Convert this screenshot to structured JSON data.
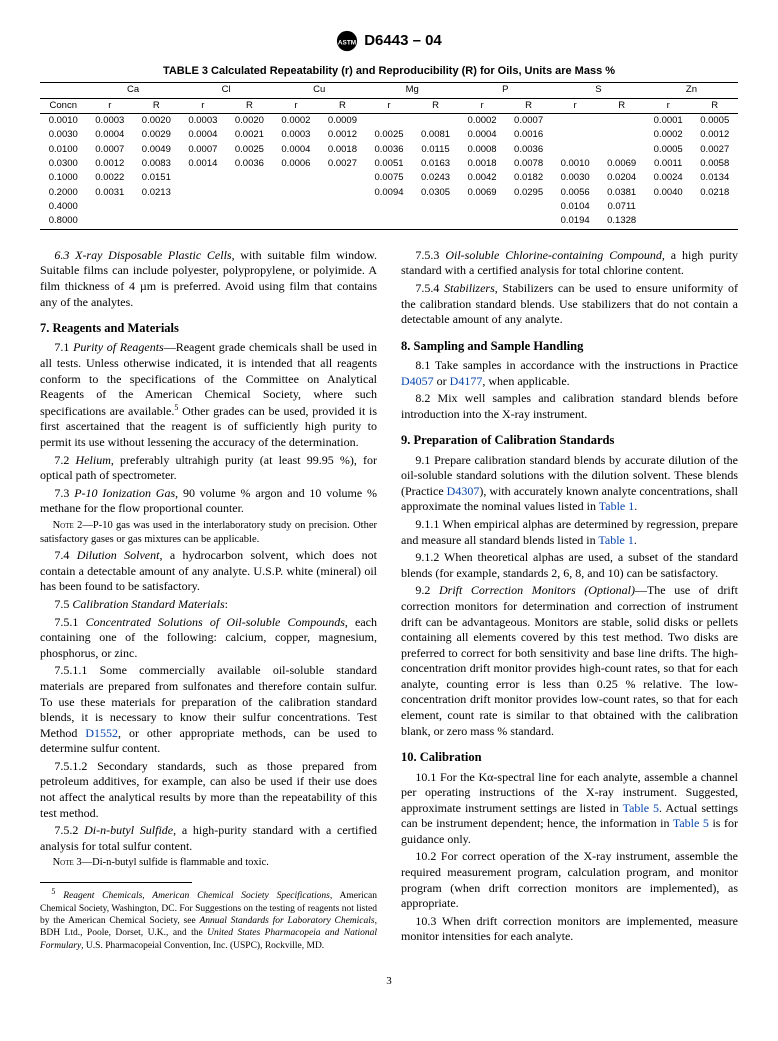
{
  "header": {
    "designation": "D6443 – 04"
  },
  "table3": {
    "caption": "TABLE 3  Calculated Repeatability (r) and Reproducibility (R) for Oils, Units are Mass %",
    "group_headers": [
      "",
      "Ca",
      "Cl",
      "Cu",
      "Mg",
      "P",
      "S",
      "Zn"
    ],
    "sub_headers": [
      "Concn",
      "r",
      "R",
      "r",
      "R",
      "r",
      "R",
      "r",
      "R",
      "r",
      "R",
      "r",
      "R",
      "r",
      "R"
    ],
    "rows": [
      [
        "0.0010",
        "0.0003",
        "0.0020",
        "0.0003",
        "0.0020",
        "0.0002",
        "0.0009",
        "",
        "",
        "0.0002",
        "0.0007",
        "",
        "",
        "0.0001",
        "0.0005"
      ],
      [
        "0.0030",
        "0.0004",
        "0.0029",
        "0.0004",
        "0.0021",
        "0.0003",
        "0.0012",
        "0.0025",
        "0.0081",
        "0.0004",
        "0.0016",
        "",
        "",
        "0.0002",
        "0.0012"
      ],
      [
        "0.0100",
        "0.0007",
        "0.0049",
        "0.0007",
        "0.0025",
        "0.0004",
        "0.0018",
        "0.0036",
        "0.0115",
        "0.0008",
        "0.0036",
        "",
        "",
        "0.0005",
        "0.0027"
      ],
      [
        "0.0300",
        "0.0012",
        "0.0083",
        "0.0014",
        "0.0036",
        "0.0006",
        "0.0027",
        "0.0051",
        "0.0163",
        "0.0018",
        "0.0078",
        "0.0010",
        "0.0069",
        "0.0011",
        "0.0058"
      ],
      [
        "0.1000",
        "0.0022",
        "0.0151",
        "",
        "",
        "",
        "",
        "0.0075",
        "0.0243",
        "0.0042",
        "0.0182",
        "0.0030",
        "0.0204",
        "0.0024",
        "0.0134"
      ],
      [
        "0.2000",
        "0.0031",
        "0.0213",
        "",
        "",
        "",
        "",
        "0.0094",
        "0.0305",
        "0.0069",
        "0.0295",
        "0.0056",
        "0.0381",
        "0.0040",
        "0.0218"
      ],
      [
        "0.4000",
        "",
        "",
        "",
        "",
        "",
        "",
        "",
        "",
        "",
        "",
        "0.0104",
        "0.0711",
        "",
        ""
      ],
      [
        "0.8000",
        "",
        "",
        "",
        "",
        "",
        "",
        "",
        "",
        "",
        "",
        "0.0194",
        "0.1328",
        "",
        ""
      ]
    ]
  },
  "left": {
    "p63": "6.3 X-ray Disposable Plastic Cells, with suitable film window. Suitable films can include polyester, polypropylene, or polyimide. A film thickness of 4 µm is preferred. Avoid using film that contains any of the analytes.",
    "h7": "7. Reagents and Materials",
    "p71": "7.1 Purity of Reagents—Reagent grade chemicals shall be used in all tests. Unless otherwise indicated, it is intended that all reagents conform to the specifications of the Committee on Analytical Reagents of the American Chemical Society, where such specifications are available.⁵ Other grades can be used, provided it is first ascertained that the reagent is of sufficiently high purity to permit its use without lessening the accuracy of the determination.",
    "p72": "7.2 Helium, preferably ultrahigh purity (at least 99.95 %), for optical path of spectrometer.",
    "p73": "7.3 P-10 Ionization Gas, 90 volume % argon and 10 volume % methane for the flow proportional counter.",
    "note2": "Note 2—P-10 gas was used in the interlaboratory study on precision. Other satisfactory gases or gas mixtures can be applicable.",
    "p74": "7.4 Dilution Solvent, a hydrocarbon solvent, which does not contain a detectable amount of any analyte. U.S.P. white (mineral) oil has been found to be satisfactory.",
    "p75": "7.5 Calibration Standard Materials:",
    "p751": "7.5.1 Concentrated Solutions of Oil-soluble Compounds, each containing one of the following: calcium, copper, magnesium, phosphorus, or zinc.",
    "p7511a": "7.5.1.1 Some commercially available oil-soluble standard materials are prepared from sulfonates and therefore contain sulfur. To use these materials for preparation of the calibration standard blends, it is necessary to know their sulfur concentrations. Test Method ",
    "link_d1552": "D1552",
    "p7511b": ", or other appropriate methods, can be used to determine sulfur content.",
    "p7512": "7.5.1.2 Secondary standards, such as those prepared from petroleum additives, for example, can also be used if their use does not affect the analytical results by more than the repeatability of this test method.",
    "p752": "7.5.2 Di-n-butyl Sulfide, a high-purity standard with a certified analysis for total sulfur content.",
    "note3": "Note 3—Di-n-butyl sulfide is flammable and toxic.",
    "footnote5": "⁵ Reagent Chemicals, American Chemical Society Specifications, American Chemical Society, Washington, DC. For Suggestions on the testing of reagents not listed by the American Chemical Society, see Annual Standards for Laboratory Chemicals, BDH Ltd., Poole, Dorset, U.K., and the United States Pharmacopeia and National Formulary, U.S. Pharmacopeial Convention, Inc. (USPC), Rockville, MD."
  },
  "right": {
    "p753": "7.5.3 Oil-soluble Chlorine-containing Compound, a high purity standard with a certified analysis for total chlorine content.",
    "p754": "7.5.4 Stabilizers, Stabilizers can be used to ensure uniformity of the calibration standard blends. Use stabilizers that do not contain a detectable amount of any analyte.",
    "h8": "8. Sampling and Sample Handling",
    "p81a": "8.1 Take samples in accordance with the instructions in Practice ",
    "link_d4057": "D4057",
    "p81b": " or ",
    "link_d4177": "D4177",
    "p81c": ", when applicable.",
    "p82": "8.2 Mix well samples and calibration standard blends before introduction into the X-ray instrument.",
    "h9": "9. Preparation of Calibration Standards",
    "p91a": "9.1 Prepare calibration standard blends by accurate dilution of the oil-soluble standard solutions with the dilution solvent. These blends (Practice ",
    "link_d4307": "D4307",
    "p91b": "), with accurately known analyte concentrations, shall approximate the nominal values listed in ",
    "link_t1a": "Table 1",
    "p91c": ".",
    "p911a": "9.1.1 When empirical alphas are determined by regression, prepare and measure all standard blends listed in ",
    "link_t1b": "Table 1",
    "p911b": ".",
    "p912": "9.1.2 When theoretical alphas are used, a subset of the standard blends (for example, standards 2, 6, 8, and 10) can be satisfactory.",
    "p92": "9.2 Drift Correction Monitors (Optional)—The use of drift correction monitors for determination and correction of instrument drift can be advantageous. Monitors are stable, solid disks or pellets containing all elements covered by this test method. Two disks are preferred to correct for both sensitivity and base line drifts. The high-concentration drift monitor provides high-count rates, so that for each analyte, counting error is less than 0.25 % relative. The low-concentration drift monitor provides low-count rates, so that for each element, count rate is similar to that obtained with the calibration blank, or zero mass % standard.",
    "h10": "10. Calibration",
    "p101a": "10.1 For the Kα-spectral line for each analyte, assemble a channel per operating instructions of the X-ray instrument. Suggested, approximate instrument settings are listed in ",
    "link_t5a": "Table 5",
    "p101b": ". Actual settings can be instrument dependent; hence, the information in ",
    "link_t5b": "Table 5",
    "p101c": " is for guidance only.",
    "p102": "10.2 For correct operation of the X-ray instrument, assemble the required measurement program, calculation program, and monitor program (when drift correction monitors are implemented), as appropriate.",
    "p103": "10.3 When drift correction monitors are implemented, measure monitor intensities for each analyte."
  },
  "page_number": "3"
}
